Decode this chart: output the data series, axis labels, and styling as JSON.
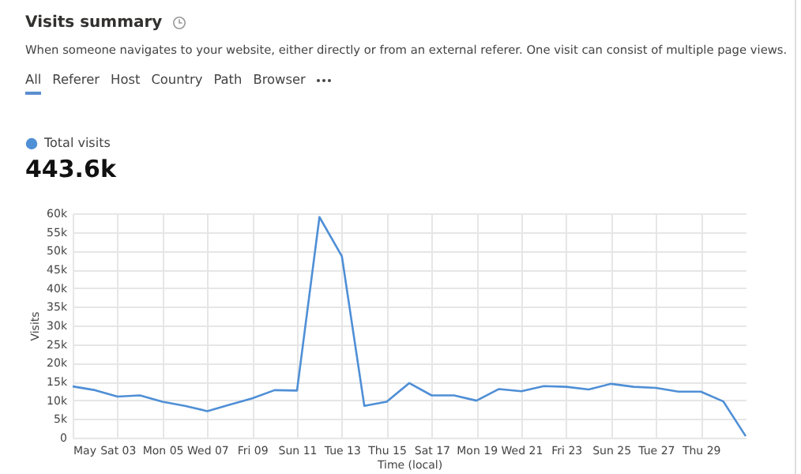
{
  "chart_data": {
    "type": "line",
    "title": "Visits summary",
    "subtitle": "When someone navigates to your website, either directly or from an external referer. One visit can consist of multiple page views.",
    "annotations": [
      "All",
      "Referer",
      "Host",
      "Country",
      "Path",
      "Browser",
      "443.6k"
    ],
    "xlabel": "Time (local)",
    "ylabel": "Visits",
    "x": [
      "--05-01",
      "--05-02",
      "--05-03",
      "--05-04",
      "--05-05",
      "--05-06",
      "--05-07",
      "--05-08",
      "--05-09",
      "--05-10",
      "--05-11",
      "--05-12",
      "--05-13",
      "--05-14",
      "--05-15",
      "--05-16",
      "--05-17",
      "--05-18",
      "--05-19",
      "--05-20",
      "--05-21",
      "--05-22",
      "--05-23",
      "--05-24",
      "--05-25",
      "--05-26",
      "--05-27",
      "--05-28",
      "--05-29",
      "--05-30",
      "--05-31"
    ],
    "series": [
      {
        "name": "Total visits",
        "color": "#4f8fd6",
        "values": [
          13700,
          12700,
          11000,
          11300,
          9600,
          8500,
          7100,
          8800,
          10500,
          12700,
          12600,
          59000,
          48500,
          8500,
          9600,
          14600,
          11300,
          11300,
          9900,
          13000,
          12400,
          13800,
          13600,
          12900,
          14400,
          13600,
          13300,
          12300,
          12300,
          9700,
          400
        ]
      }
    ],
    "xlim": [
      "--05-01",
      "--05-31"
    ],
    "xticks": [
      {
        "value": "--05-01",
        "label": "May"
      },
      {
        "value": "--05-03",
        "label": "Sat 03"
      },
      {
        "value": "--05-05",
        "label": "Mon 05"
      },
      {
        "value": "--05-07",
        "label": "Wed 07"
      },
      {
        "value": "--05-09",
        "label": "Fri 09"
      },
      {
        "value": "--05-11",
        "label": "Sun 11"
      },
      {
        "value": "--05-13",
        "label": "Tue 13"
      },
      {
        "value": "--05-15",
        "label": "Thu 15"
      },
      {
        "value": "--05-17",
        "label": "Sat 17"
      },
      {
        "value": "--05-19",
        "label": "Mon 19"
      },
      {
        "value": "--05-21",
        "label": "Wed 21"
      },
      {
        "value": "--05-23",
        "label": "Fri 23"
      },
      {
        "value": "--05-25",
        "label": "Sun 25"
      },
      {
        "value": "--05-27",
        "label": "Tue 27"
      },
      {
        "value": "--05-29",
        "label": "Thu 29"
      }
    ],
    "ylim": [
      0,
      60000
    ],
    "yticks": [
      0,
      {
        "value": 5000,
        "label": "5k"
      },
      {
        "value": 10000,
        "label": "10k"
      },
      {
        "value": 15000,
        "label": "15k"
      },
      {
        "value": 20000,
        "label": "20k"
      },
      {
        "value": 25000,
        "label": "25k"
      },
      {
        "value": 30000,
        "label": "30k"
      },
      {
        "value": 35000,
        "label": "35k"
      },
      {
        "value": 40000,
        "label": "40k"
      },
      {
        "value": 45000,
        "label": "45k"
      },
      {
        "value": 50000,
        "label": "50k"
      },
      {
        "value": 55000,
        "label": "55k"
      },
      {
        "value": 60000,
        "label": "60k"
      }
    ],
    "grid": true,
    "legend": "top left",
    "marker": "none",
    "line_style": "solid"
  }
}
